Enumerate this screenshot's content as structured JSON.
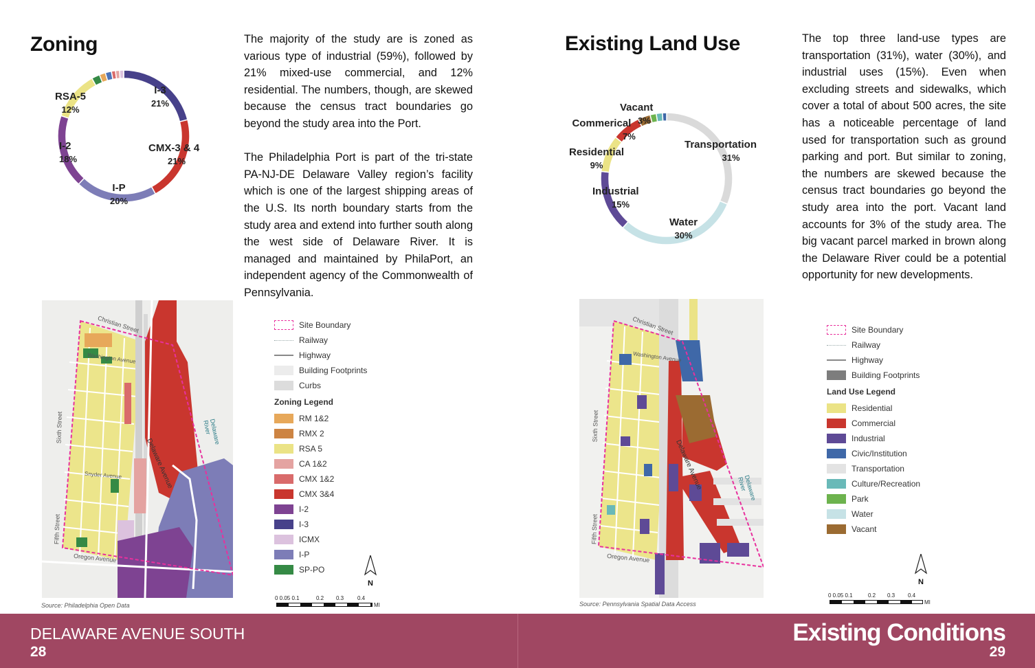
{
  "left": {
    "title": "Zoning",
    "paragraphs": [
      "The majority of the study are is zoned as various type of industrial (59%), followed by 21% mixed-use commercial, and 12% residential. The numbers, though, are skewed because the census tract boundaries go beyond the study area into the Port.",
      "The Philadelphia Port is part of the tri-state PA-NJ-DE Delaware Valley region’s facility which is one of the largest shipping areas of the U.S. Its north boundary starts from the study area and extend into further south along the west side of Delaware River. It is managed and maintained by PhilaPort, an independent agency of the Commonwealth of Pennsylvania."
    ],
    "donut_labels": [
      {
        "name": "I-3",
        "pct": "21%"
      },
      {
        "name": "CMX-3 & 4",
        "pct": "21%"
      },
      {
        "name": "I-P",
        "pct": "20%"
      },
      {
        "name": "I-2",
        "pct": "18%"
      },
      {
        "name": "RSA-5",
        "pct": "12%"
      }
    ],
    "map_labels": {
      "christian": "Christian Street",
      "washington": "Washington Avenue",
      "sixth": "Sixth Street",
      "fifth": "Fifth Street",
      "oregon": "Oregon Avenue",
      "delaware_ave": "Delaware Avenue",
      "delaware_river": "Delaware River",
      "snyder": "Snyder Avenue"
    },
    "source": "Source: Philadelphia Open Data",
    "legend_base": [
      {
        "label": "Site Boundary",
        "type": "boundary"
      },
      {
        "label": "Railway",
        "type": "railway"
      },
      {
        "label": "Highway",
        "type": "highway"
      },
      {
        "label": "Building Footprints",
        "color": "#ececec"
      },
      {
        "label": "Curbs",
        "color": "#dcdcdc"
      }
    ],
    "legend_title": "Zoning Legend",
    "legend_items": [
      {
        "label": "RM 1&2",
        "color": "#e7a85a"
      },
      {
        "label": "RMX 2",
        "color": "#cd8443"
      },
      {
        "label": "RSA 5",
        "color": "#ebe386"
      },
      {
        "label": "CA 1&2",
        "color": "#e4a3a1"
      },
      {
        "label": "CMX 1&2",
        "color": "#d96b6b"
      },
      {
        "label": "CMX 3&4",
        "color": "#c9362e"
      },
      {
        "label": "I-2",
        "color": "#7e4392"
      },
      {
        "label": "I-3",
        "color": "#47418a"
      },
      {
        "label": "ICMX",
        "color": "#dcc2de"
      },
      {
        "label": "I-P",
        "color": "#7d7db7"
      },
      {
        "label": "SP-PO",
        "color": "#358a45"
      }
    ],
    "north": "N",
    "scale_ticks": [
      "0 0.05 0.1",
      "0.2",
      "0.3",
      "0.4"
    ],
    "scale_unit": "MI"
  },
  "right": {
    "title": "Existing Land Use",
    "paragraphs": [
      "The top three land-use types are transportation (31%), water (30%), and industrial uses (15%). Even when excluding streets and sidewalks, which cover a total of about 500 acres, the site has a noticeable percentage of land used for transportation such as ground parking and port. But similar to zoning, the numbers are skewed because the census tract boundaries go beyond the study area into the port. Vacant land accounts for 3% of the study area. The big vacant parcel marked in brown along the Delaware River could be a potential opportunity for new developments."
    ],
    "donut_labels": [
      {
        "name": "Vacant",
        "pct": "3%"
      },
      {
        "name": "Commerical",
        "pct": "7%"
      },
      {
        "name": "Residential",
        "pct": "9%"
      },
      {
        "name": "Industrial",
        "pct": "15%"
      },
      {
        "name": "Transportation",
        "pct": "31%"
      },
      {
        "name": "Water",
        "pct": "30%"
      }
    ],
    "map_labels": {
      "christian": "Christian Street",
      "washington": "Washington Avenue",
      "sixth": "Sixth Street",
      "fifth": "Fifth Street",
      "oregon": "Oregon Avenue",
      "delaware_ave": "Delaware Avenue",
      "delaware_river": "Delaware River"
    },
    "source": "Source: Pennsylvania Spatial Data Access",
    "legend_base": [
      {
        "label": "Site Boundary",
        "type": "boundary"
      },
      {
        "label": "Railway",
        "type": "railway"
      },
      {
        "label": "Highway",
        "type": "highway"
      },
      {
        "label": "Building Footprints",
        "color": "#7d7d7d"
      }
    ],
    "legend_title": "Land Use Legend",
    "legend_items": [
      {
        "label": "Residential",
        "color": "#ebe386"
      },
      {
        "label": "Commercial",
        "color": "#c9362e"
      },
      {
        "label": "Industrial",
        "color": "#5e4a96"
      },
      {
        "label": "Civic/Institution",
        "color": "#3f68a8"
      },
      {
        "label": "Transportation",
        "color": "#e3e3e3"
      },
      {
        "label": "Culture/Recreation",
        "color": "#69b9b8"
      },
      {
        "label": "Park",
        "color": "#6db34e"
      },
      {
        "label": "Water",
        "color": "#c6e2e6"
      },
      {
        "label": "Vacant",
        "color": "#9b6b32"
      }
    ],
    "north": "N",
    "scale_ticks": [
      "0 0.05 0.1",
      "0.2",
      "0.3",
      "0.4"
    ],
    "scale_unit": "MI"
  },
  "footer": {
    "left_title": "DELAWARE AVENUE SOUTH",
    "left_page": "28",
    "right_title": "Existing Conditions",
    "right_page": "29",
    "color": "#a04762"
  },
  "chart_data": [
    {
      "type": "pie",
      "subtype": "donut",
      "title": "Zoning",
      "categories": [
        "I-3",
        "CMX-3 & 4",
        "I-P",
        "I-2",
        "RSA-5",
        "SP-PO",
        "RM 1&2",
        "I-P (small)",
        "CMX 1&2",
        "CA 1&2",
        "ICMX"
      ],
      "values": [
        21,
        21,
        20,
        18,
        12,
        2,
        1.5,
        1.5,
        1,
        1,
        1
      ],
      "colors": [
        "#47418a",
        "#c9362e",
        "#7d7db7",
        "#7e4392",
        "#ebe386",
        "#358a45",
        "#e7a85a",
        "#4d74b8",
        "#d96b6b",
        "#e4a3a1",
        "#dcc2de"
      ]
    },
    {
      "type": "pie",
      "subtype": "donut",
      "title": "Existing Land Use",
      "categories": [
        "Transportation",
        "Water",
        "Industrial",
        "Residential",
        "Commerical",
        "Vacant",
        "Park",
        "Culture/Recreation",
        "Civic/Institution"
      ],
      "values": [
        31,
        30,
        15,
        9,
        7,
        3,
        1.5,
        1.5,
        1
      ],
      "colors": [
        "#dadada",
        "#c6e2e6",
        "#5e4a96",
        "#ebe386",
        "#c9362e",
        "#9b6b32",
        "#6db34e",
        "#69b9b8",
        "#3f68a8"
      ]
    }
  ]
}
